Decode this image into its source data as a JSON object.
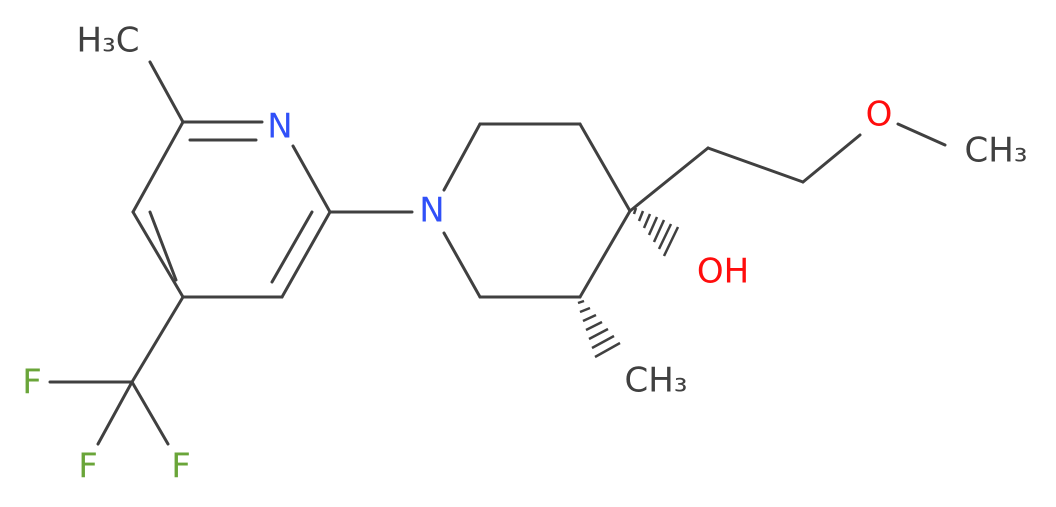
{
  "atoms": [
    {
      "label": "H₃C"
    },
    {
      "label": "N"
    },
    {
      "label": "N"
    },
    {
      "label": "O"
    },
    {
      "label": "CH₃"
    },
    {
      "label": "OH"
    },
    {
      "label": "CH₃"
    },
    {
      "label": "F"
    },
    {
      "label": "F"
    },
    {
      "label": "F"
    }
  ]
}
